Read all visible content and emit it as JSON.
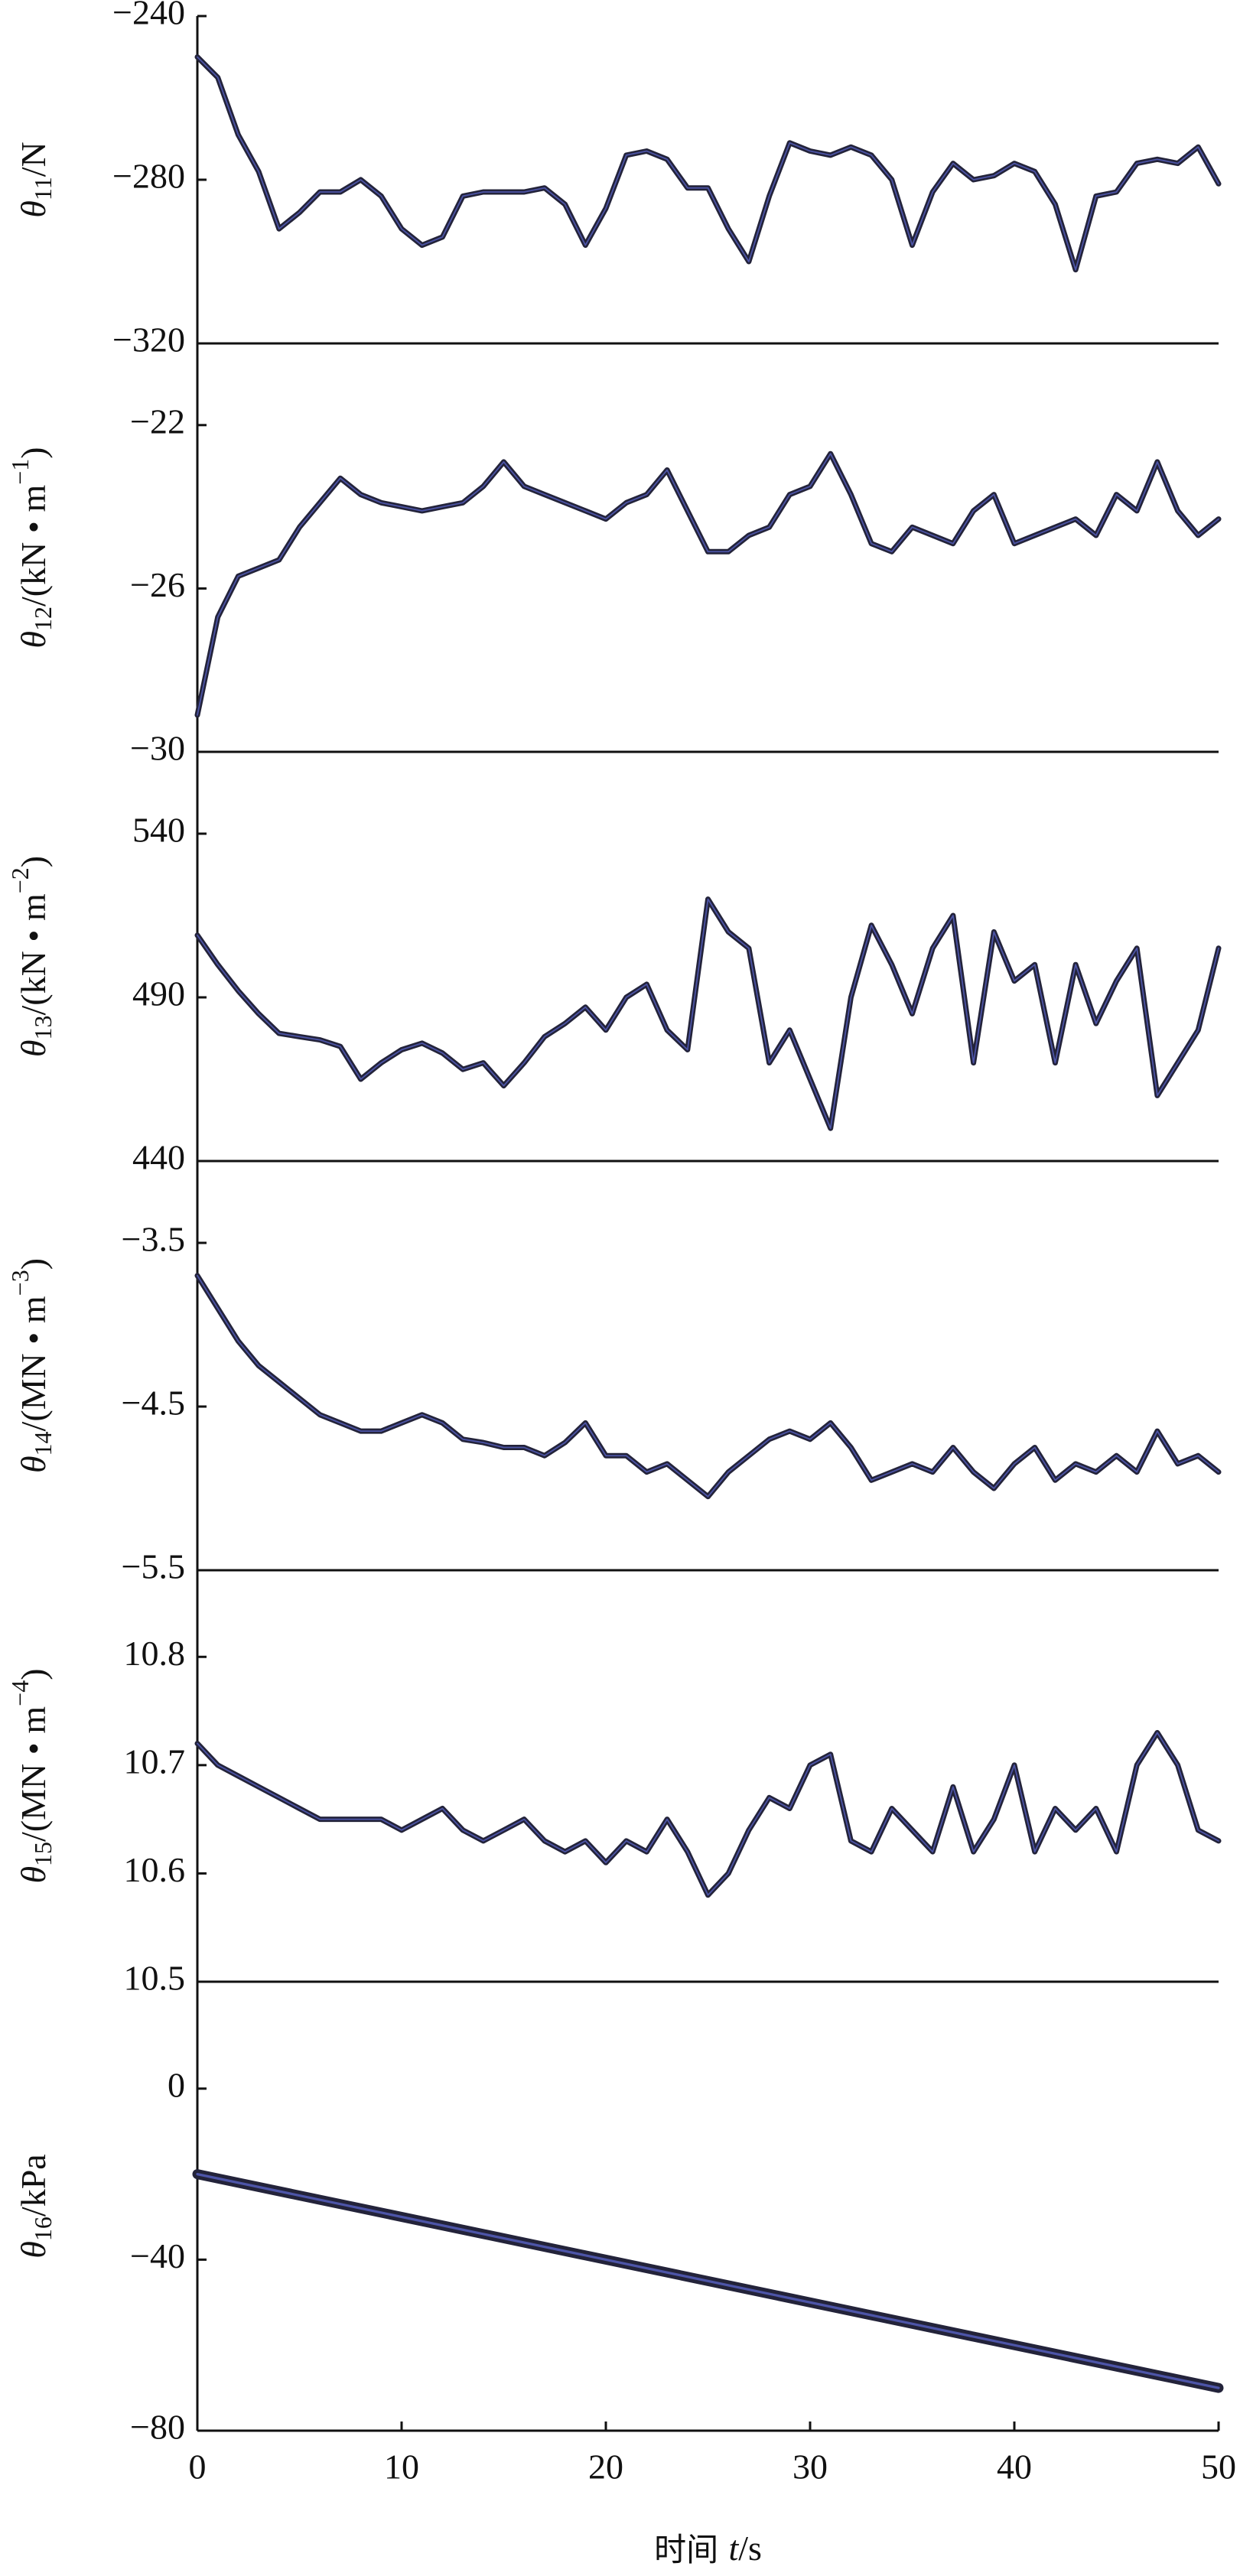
{
  "chart_data": [
    {
      "type": "line",
      "ylabel": {
        "main": "θ",
        "sub": "11",
        "unit": "/N"
      },
      "xlim": [
        0,
        50
      ],
      "ylim": [
        -320,
        -240
      ],
      "yticks": [
        {
          "value": -320,
          "label": "−320"
        },
        {
          "value": -280,
          "label": "−280"
        },
        {
          "value": -240,
          "label": "−240"
        }
      ],
      "x": [
        0,
        1,
        2,
        3,
        4,
        5,
        6,
        7,
        8,
        9,
        10,
        11,
        12,
        13,
        14,
        15,
        16,
        17,
        18,
        19,
        20,
        21,
        22,
        23,
        24,
        25,
        26,
        27,
        28,
        29,
        30,
        31,
        32,
        33,
        34,
        35,
        36,
        37,
        38,
        39,
        40,
        41,
        42,
        43,
        44,
        45,
        46,
        47,
        48,
        49,
        50
      ],
      "series": [
        {
          "color": "#23233a",
          "values": [
            -250,
            -255,
            -269,
            -278,
            -292,
            -288,
            -283,
            -283,
            -280,
            -284,
            -292,
            -296,
            -294,
            -284,
            -283,
            -283,
            -283,
            -282,
            -286,
            -296,
            -287,
            -274,
            -273,
            -275,
            -282,
            -282,
            -292,
            -300,
            -284,
            -271,
            -273,
            -274,
            -272,
            -274,
            -280,
            -296,
            -283,
            -276,
            -280,
            -279,
            -276,
            -278,
            -286,
            -302,
            -284,
            -283,
            -276,
            -275,
            -276,
            -272,
            -281
          ]
        }
      ]
    },
    {
      "type": "line",
      "ylabel": {
        "main": "θ",
        "sub": "12",
        "unit": "/(kN • m",
        "sup": "−1",
        "close": ")"
      },
      "xlim": [
        0,
        50
      ],
      "ylim": [
        -30,
        -20
      ],
      "yticks": [
        {
          "value": -30,
          "label": "−30"
        },
        {
          "value": -26,
          "label": "−26"
        },
        {
          "value": -22,
          "label": "−22"
        }
      ],
      "x": [
        0,
        1,
        2,
        3,
        4,
        5,
        6,
        7,
        8,
        9,
        10,
        11,
        12,
        13,
        14,
        15,
        16,
        17,
        18,
        19,
        20,
        21,
        22,
        23,
        24,
        25,
        26,
        27,
        28,
        29,
        30,
        31,
        32,
        33,
        34,
        35,
        36,
        37,
        38,
        39,
        40,
        41,
        42,
        43,
        44,
        45,
        46,
        47,
        48,
        49,
        50
      ],
      "series": [
        {
          "color": "#23233a",
          "values": [
            -29.1,
            -26.7,
            -25.7,
            -25.5,
            -25.3,
            -24.5,
            -23.9,
            -23.3,
            -23.7,
            -23.9,
            -24.0,
            -24.1,
            -24.0,
            -23.9,
            -23.5,
            -22.9,
            -23.5,
            -23.7,
            -23.9,
            -24.1,
            -24.3,
            -23.9,
            -23.7,
            -23.1,
            -24.1,
            -25.1,
            -25.1,
            -24.7,
            -24.5,
            -23.7,
            -23.5,
            -22.7,
            -23.7,
            -24.9,
            -25.1,
            -24.5,
            -24.7,
            -24.9,
            -24.1,
            -23.7,
            -24.9,
            -24.7,
            -24.5,
            -24.3,
            -24.7,
            -23.7,
            -24.1,
            -22.9,
            -24.1,
            -24.7,
            -24.3
          ]
        }
      ]
    },
    {
      "type": "line",
      "ylabel": {
        "main": "θ",
        "sub": "13",
        "unit": "/(kN • m",
        "sup": "−2",
        "close": ")"
      },
      "xlim": [
        0,
        50
      ],
      "ylim": [
        440,
        565
      ],
      "yticks": [
        440,
        490,
        540
      ],
      "x": [
        0,
        1,
        2,
        3,
        4,
        5,
        6,
        7,
        8,
        9,
        10,
        11,
        12,
        13,
        14,
        15,
        16,
        17,
        18,
        19,
        20,
        21,
        22,
        23,
        24,
        25,
        26,
        27,
        28,
        29,
        30,
        31,
        32,
        33,
        34,
        35,
        36,
        37,
        38,
        39,
        40,
        41,
        42,
        43,
        44,
        45,
        46,
        47,
        48,
        49,
        50
      ],
      "series": [
        {
          "color": "#23233a",
          "values": [
            509,
            500,
            492,
            485,
            479,
            478,
            477,
            475,
            465,
            470,
            474,
            476,
            473,
            468,
            470,
            463,
            470,
            478,
            482,
            487,
            480,
            490,
            494,
            480,
            474,
            520,
            510,
            505,
            470,
            480,
            465,
            450,
            490,
            512,
            500,
            485,
            505,
            515,
            470,
            510,
            495,
            500,
            470,
            500,
            482,
            495,
            505,
            460,
            470,
            480,
            505
          ]
        }
      ]
    },
    {
      "type": "line",
      "ylabel": {
        "main": "θ",
        "sub": "14",
        "unit": "/(MN • m",
        "sup": "−3",
        "close": ")"
      },
      "xlim": [
        0,
        50
      ],
      "ylim": [
        -5.5,
        -3.0
      ],
      "yticks": [
        {
          "value": -5.5,
          "label": "−5.5"
        },
        {
          "value": -4.5,
          "label": "−4.5"
        },
        {
          "value": -3.5,
          "label": "−3.5"
        }
      ],
      "x": [
        0,
        1,
        2,
        3,
        4,
        5,
        6,
        7,
        8,
        9,
        10,
        11,
        12,
        13,
        14,
        15,
        16,
        17,
        18,
        19,
        20,
        21,
        22,
        23,
        24,
        25,
        26,
        27,
        28,
        29,
        30,
        31,
        32,
        33,
        34,
        35,
        36,
        37,
        38,
        39,
        40,
        41,
        42,
        43,
        44,
        45,
        46,
        47,
        48,
        49,
        50
      ],
      "series": [
        {
          "color": "#23233a",
          "values": [
            -3.7,
            -3.9,
            -4.1,
            -4.25,
            -4.35,
            -4.45,
            -4.55,
            -4.6,
            -4.65,
            -4.65,
            -4.6,
            -4.55,
            -4.6,
            -4.7,
            -4.72,
            -4.75,
            -4.75,
            -4.8,
            -4.72,
            -4.6,
            -4.8,
            -4.8,
            -4.9,
            -4.85,
            -4.95,
            -5.05,
            -4.9,
            -4.8,
            -4.7,
            -4.65,
            -4.7,
            -4.6,
            -4.75,
            -4.95,
            -4.9,
            -4.85,
            -4.9,
            -4.75,
            -4.9,
            -5.0,
            -4.85,
            -4.75,
            -4.95,
            -4.85,
            -4.9,
            -4.8,
            -4.9,
            -4.65,
            -4.85,
            -4.8,
            -4.9
          ]
        }
      ]
    },
    {
      "type": "line",
      "ylabel": {
        "main": "θ",
        "sub": "15",
        "unit": "/(MN • m",
        "sup": "−4",
        "close": ")"
      },
      "xlim": [
        0,
        50
      ],
      "ylim": [
        10.5,
        10.88
      ],
      "yticks": [
        10.5,
        10.6,
        10.7,
        10.8
      ],
      "x": [
        0,
        1,
        2,
        3,
        4,
        5,
        6,
        7,
        8,
        9,
        10,
        11,
        12,
        13,
        14,
        15,
        16,
        17,
        18,
        19,
        20,
        21,
        22,
        23,
        24,
        25,
        26,
        27,
        28,
        29,
        30,
        31,
        32,
        33,
        34,
        35,
        36,
        37,
        38,
        39,
        40,
        41,
        42,
        43,
        44,
        45,
        46,
        47,
        48,
        49,
        50
      ],
      "series": [
        {
          "color": "#23233a",
          "values": [
            10.72,
            10.7,
            10.69,
            10.68,
            10.67,
            10.66,
            10.65,
            10.65,
            10.65,
            10.65,
            10.64,
            10.65,
            10.66,
            10.64,
            10.63,
            10.64,
            10.65,
            10.63,
            10.62,
            10.63,
            10.61,
            10.63,
            10.62,
            10.65,
            10.62,
            10.58,
            10.6,
            10.64,
            10.67,
            10.66,
            10.7,
            10.71,
            10.63,
            10.62,
            10.66,
            10.64,
            10.62,
            10.68,
            10.62,
            10.65,
            10.7,
            10.62,
            10.66,
            10.64,
            10.66,
            10.62,
            10.7,
            10.73,
            10.7,
            10.64,
            10.63
          ]
        }
      ]
    },
    {
      "type": "line",
      "ylabel": {
        "main": "θ",
        "sub": "16",
        "unit": "/kPa"
      },
      "xlim": [
        0,
        50
      ],
      "ylim": [
        -80,
        25
      ],
      "yticks": [
        {
          "value": -80,
          "label": "−80"
        },
        {
          "value": -40,
          "label": "−40"
        },
        0
      ],
      "xticks": [
        0,
        10,
        20,
        30,
        40,
        50
      ],
      "xlabel": {
        "main": "时间 ",
        "var": "t",
        "unit": "/s"
      },
      "x": [
        0,
        50
      ],
      "series": [
        {
          "color": "#23233a",
          "values": [
            -20,
            -70
          ]
        }
      ]
    }
  ]
}
